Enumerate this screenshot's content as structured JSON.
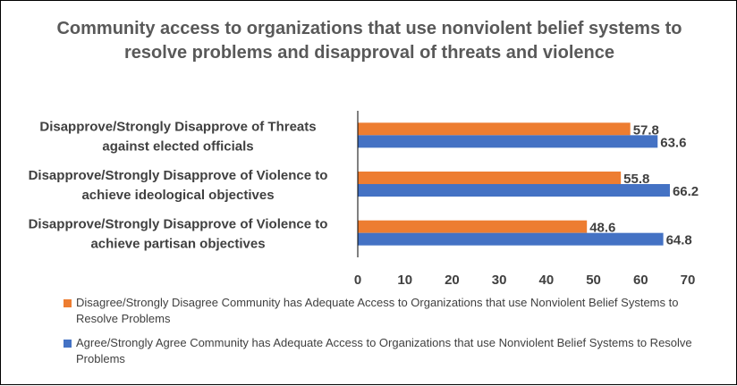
{
  "chart_data": {
    "type": "bar",
    "orientation": "horizontal",
    "title": "Community access to organizations that use nonviolent belief systems to resolve problems and disapproval of threats and violence",
    "categories": [
      [
        "Disapprove/Strongly Disapprove of Threats",
        "against elected officials"
      ],
      [
        "Disapprove/Strongly Disapprove of Violence to",
        "achieve ideological objectives"
      ],
      [
        "Disapprove/Strongly Disapprove of Violence to",
        "achieve partisan objectives"
      ]
    ],
    "series": [
      {
        "name": "Disagree/Strongly Disagree Community has Adequate Access to Organizations that use Nonviolent Belief Systems to Resolve Problems",
        "color": "#ED7D31",
        "values": [
          57.8,
          55.8,
          48.6
        ]
      },
      {
        "name": "Agree/Strongly Agree Community has Adequate Access to Organizations that use Nonviolent Belief Systems to Resolve Problems",
        "color": "#4472C4",
        "values": [
          63.6,
          66.2,
          64.8
        ]
      }
    ],
    "xlim": [
      0,
      70
    ],
    "xticks": [
      0,
      10,
      20,
      30,
      40,
      50,
      60,
      70
    ],
    "grid": false,
    "legend_position": "bottom"
  }
}
